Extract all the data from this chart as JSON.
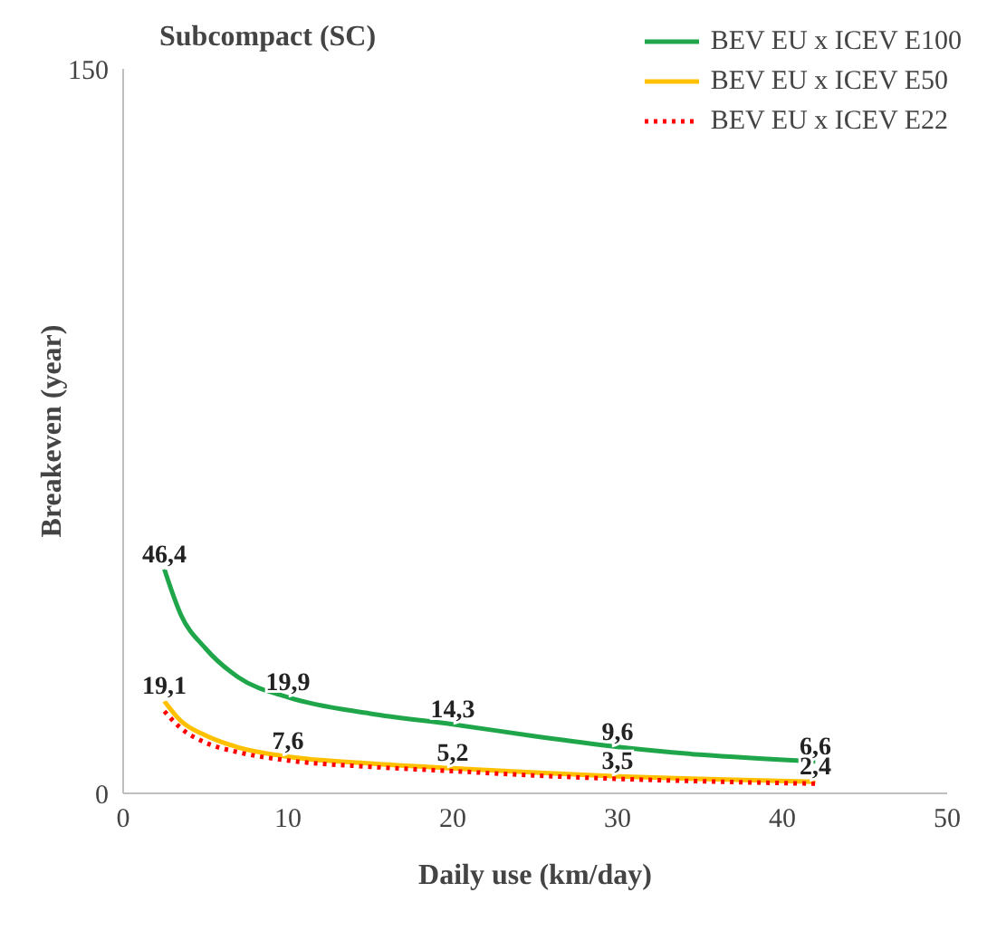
{
  "chart_data": {
    "type": "line",
    "title": "Subcompact (SC)",
    "xlabel": "Daily use (km/day)",
    "ylabel": "Breakeven (year)",
    "xlim": [
      0,
      50
    ],
    "xticks": [
      0,
      10,
      20,
      30,
      40,
      50
    ],
    "ylim": [
      0,
      150
    ],
    "yticks": [
      0,
      150
    ],
    "legend": "top right",
    "marker": "none",
    "series": [
      {
        "name": "BEV EU x ICEV E100",
        "color": "#1fa64a",
        "line_style": "solid",
        "x": [
          2.5,
          3.5,
          5,
          7,
          10,
          15,
          20,
          25,
          30,
          35,
          42
        ],
        "values": [
          46.4,
          37,
          30,
          24,
          19.9,
          16.5,
          14.3,
          11.8,
          9.6,
          8,
          6.6
        ],
        "value_labels": [
          "46,4",
          null,
          null,
          null,
          "19,9",
          null,
          "14,3",
          null,
          "9,6",
          null,
          "6,6"
        ]
      },
      {
        "name": "BEV EU x ICEV E50",
        "color": "#ffc000",
        "line_style": "solid",
        "x": [
          2.5,
          3.5,
          5,
          7,
          10,
          15,
          20,
          25,
          30,
          35,
          42
        ],
        "values": [
          19.1,
          15,
          12,
          9.5,
          7.6,
          6.2,
          5.2,
          4.3,
          3.5,
          3,
          2.4
        ],
        "value_labels": [
          "19,1",
          null,
          null,
          null,
          "7,6",
          null,
          "5,2",
          null,
          "3,5",
          null,
          "2,4"
        ]
      },
      {
        "name": "BEV EU x ICEV E22",
        "color": "#ff0000",
        "line_style": "dotted",
        "x": [
          2.5,
          3.5,
          5,
          7,
          10,
          15,
          20,
          25,
          30,
          35,
          42
        ],
        "values": [
          17,
          13.5,
          10.5,
          8.5,
          6.8,
          5.5,
          4.6,
          3.7,
          3,
          2.5,
          2
        ]
      }
    ]
  }
}
